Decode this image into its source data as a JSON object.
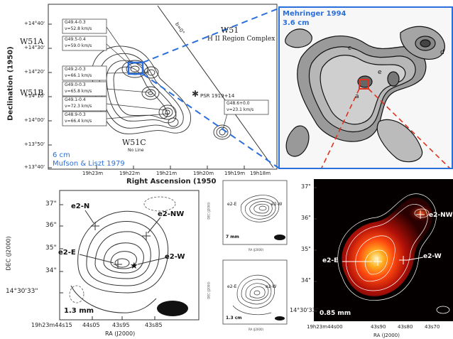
{
  "w51_map": {
    "y_title": "Declination (1950)",
    "x_title": "Right Ascension (1950",
    "y_ticks": [
      "+14°40'",
      "+14°30'",
      "+14°20'",
      "+14°10'",
      "+14°00'",
      "+13°50'",
      "+13°40'"
    ],
    "x_ticks": [
      "19h23m",
      "19h22m",
      "19h21m",
      "19h20m",
      "19h19m",
      "19h18m"
    ],
    "region_labels": {
      "a": "W51A",
      "b": "W51B",
      "c": "W51C",
      "c_sub": "No Line"
    },
    "complex_title": "W51",
    "complex_sub": "H II Region Complex",
    "psr": "PSR 1919+14",
    "plane": "b=0°",
    "boxes": [
      {
        "name": "G49.4-0.3",
        "vel": "v=52.8 km/s"
      },
      {
        "name": "G49.5-0.4",
        "vel": "v=59.0 km/s"
      },
      {
        "name": "G49.2-0.3",
        "vel": "v=66.1 km/s"
      },
      {
        "name": "G49.0-0.3",
        "vel": "v=65.8 km/s"
      },
      {
        "name": "G49.1-0.4",
        "vel": "v=72.3 km/s"
      },
      {
        "name": "G48.9-0.3",
        "vel": "v=66.4 km/s"
      },
      {
        "name": "G48.6+0.0",
        "vel": "v=23.1 km/s"
      }
    ],
    "wavelength": "6 cm",
    "credit": "Mufson & Liszt 1979"
  },
  "mehringer": {
    "credit": "Mehringer 1994",
    "wavelength": "3.6 cm",
    "labels": [
      "e",
      "d",
      "c",
      "a"
    ]
  },
  "e2_map": {
    "y_title": "DEC (J2000)",
    "x_title": "RA (J2000)",
    "y_ticks": [
      "37\"",
      "36\"",
      "35\"",
      "34\"",
      "14°30'33\""
    ],
    "x_ticks": [
      "19h23m44s15",
      "44s05",
      "43s95",
      "43s85"
    ],
    "sources": [
      "e2-N",
      "e2-NW",
      "e2-E",
      "e2-W"
    ],
    "wavelength": "1.3 mm"
  },
  "small_top": {
    "labels": [
      "e2-E",
      "e2-W"
    ],
    "wavelength": "7 mm",
    "y_title": "DEC (J2000)",
    "x_title": "RA (J2000)"
  },
  "small_bottom": {
    "labels": [
      "e2-E",
      "e2-W"
    ],
    "wavelength": "1.3 cm",
    "y_title": "DEC (J2000)",
    "x_title": "RA (J2000)"
  },
  "color_map": {
    "y_ticks": [
      "37\"",
      "36\"",
      "35\"",
      "34\"",
      "14°30'33\""
    ],
    "x_ticks": [
      "19h23m44s00",
      "43s90",
      "43s80",
      "43s70"
    ],
    "x_title": "RA (J2000)",
    "sources": [
      "e2-NW",
      "e2-E",
      "e2-W"
    ],
    "wavelength": "0.85 mm"
  },
  "colors": {
    "blue": "#2a6fdb",
    "red": "#e0301e"
  }
}
